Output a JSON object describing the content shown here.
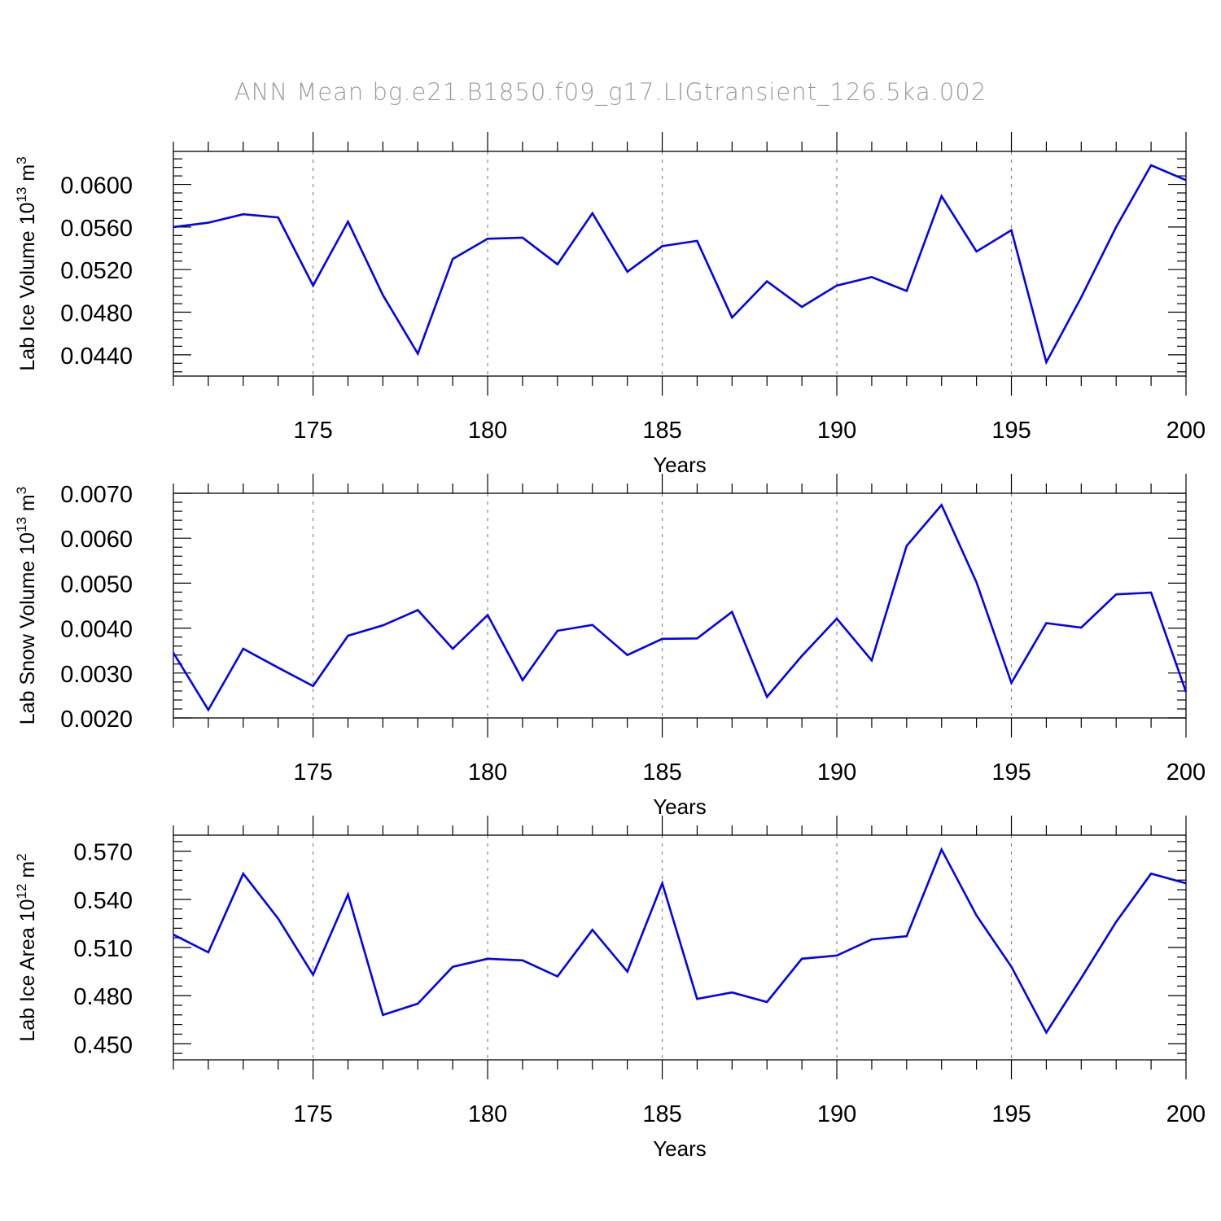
{
  "title": "ANN Mean bg.e21.B1850.f09_g17.LIGtransient_126.5ka.002",
  "chart_data": [
    {
      "type": "line",
      "xlabel": "Years",
      "ylabel": {
        "text": "Lab Ice Volume 10",
        "sup1": "13",
        "unit": " m",
        "sup2": "3"
      },
      "xlim": [
        171,
        200
      ],
      "ylim": [
        0.042,
        0.0631
      ],
      "xticks": [
        175,
        180,
        185,
        190,
        195,
        200
      ],
      "yticks": [
        0.044,
        0.048,
        0.052,
        0.056,
        0.06
      ],
      "ytick_labels": [
        "0.0440",
        "0.0480",
        "0.0520",
        "0.0560",
        "0.0600"
      ],
      "grid": "dashed vertical at major x ticks",
      "color": "#0000ff",
      "x": [
        171,
        172,
        173,
        174,
        175,
        176,
        177,
        178,
        179,
        180,
        181,
        182,
        183,
        184,
        185,
        186,
        187,
        188,
        189,
        190,
        191,
        192,
        193,
        194,
        195,
        196,
        197,
        198,
        199,
        200
      ],
      "values": [
        0.056,
        0.0564,
        0.0572,
        0.0569,
        0.0505,
        0.0565,
        0.0496,
        0.0441,
        0.053,
        0.0549,
        0.055,
        0.0525,
        0.0573,
        0.0518,
        0.0542,
        0.0547,
        0.0475,
        0.0509,
        0.0485,
        0.0505,
        0.0513,
        0.05,
        0.0589,
        0.0537,
        0.0557,
        0.0433,
        0.0494,
        0.056,
        0.0618,
        0.0604
      ]
    },
    {
      "type": "line",
      "xlabel": "Years",
      "ylabel": {
        "text": "Lab Snow Volume 10",
        "sup1": "13",
        "unit": " m",
        "sup2": "3"
      },
      "xlim": [
        171,
        200
      ],
      "ylim": [
        0.002,
        0.007
      ],
      "xticks": [
        175,
        180,
        185,
        190,
        195,
        200
      ],
      "yticks": [
        0.002,
        0.003,
        0.004,
        0.005,
        0.006,
        0.007
      ],
      "ytick_labels": [
        "0.0020",
        "0.0030",
        "0.0040",
        "0.0050",
        "0.0060",
        "0.0070"
      ],
      "grid": "dashed vertical at major x ticks",
      "color": "#0000ff",
      "x": [
        171,
        172,
        173,
        174,
        175,
        176,
        177,
        178,
        179,
        180,
        181,
        182,
        183,
        184,
        185,
        186,
        187,
        188,
        189,
        190,
        191,
        192,
        193,
        194,
        195,
        196,
        197,
        198,
        199,
        200
      ],
      "values": [
        0.00345,
        0.00218,
        0.00354,
        0.00312,
        0.00271,
        0.00383,
        0.00406,
        0.0044,
        0.00354,
        0.00429,
        0.00284,
        0.00394,
        0.00407,
        0.0034,
        0.00376,
        0.00377,
        0.00436,
        0.00247,
        0.00338,
        0.00421,
        0.00328,
        0.00583,
        0.00674,
        0.00502,
        0.00278,
        0.00411,
        0.00401,
        0.00475,
        0.00479,
        0.00258
      ]
    },
    {
      "type": "line",
      "xlabel": "Years",
      "ylabel": {
        "text": "Lab Ice Area 10",
        "sup1": "12",
        "unit": " m",
        "sup2": "2"
      },
      "xlim": [
        171,
        200
      ],
      "ylim": [
        0.44,
        0.58
      ],
      "xticks": [
        175,
        180,
        185,
        190,
        195,
        200
      ],
      "yticks": [
        0.45,
        0.48,
        0.51,
        0.54,
        0.57
      ],
      "ytick_labels": [
        "0.450",
        "0.480",
        "0.510",
        "0.540",
        "0.570"
      ],
      "grid": "dashed vertical at major x ticks",
      "color": "#0000ff",
      "x": [
        171,
        172,
        173,
        174,
        175,
        176,
        177,
        178,
        179,
        180,
        181,
        182,
        183,
        184,
        185,
        186,
        187,
        188,
        189,
        190,
        191,
        192,
        193,
        194,
        195,
        196,
        197,
        198,
        199,
        200
      ],
      "values": [
        0.518,
        0.507,
        0.556,
        0.528,
        0.493,
        0.543,
        0.468,
        0.475,
        0.498,
        0.503,
        0.502,
        0.492,
        0.521,
        0.495,
        0.55,
        0.478,
        0.482,
        0.476,
        0.503,
        0.505,
        0.515,
        0.517,
        0.571,
        0.53,
        0.498,
        0.457,
        0.491,
        0.526,
        0.556,
        0.55
      ]
    }
  ]
}
